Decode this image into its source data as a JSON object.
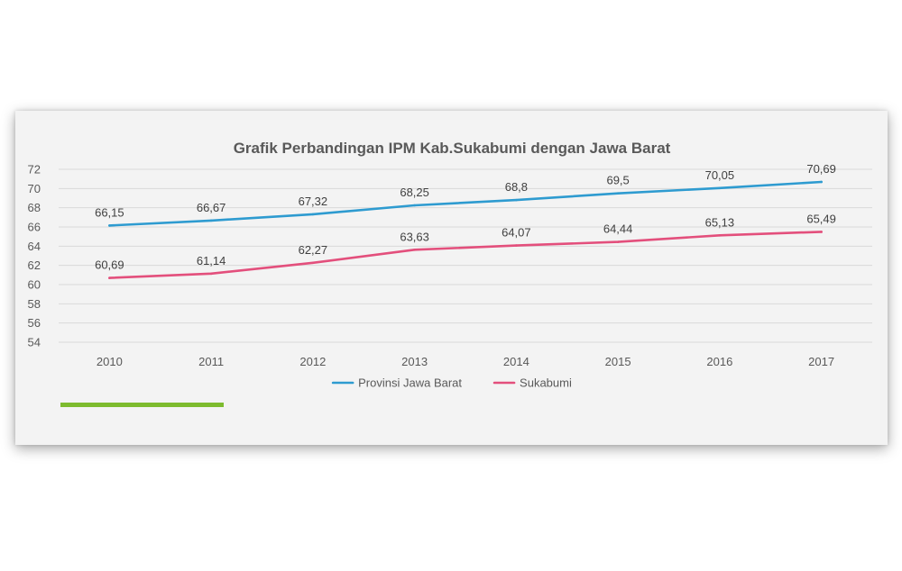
{
  "chart_data": {
    "type": "line",
    "title": "Grafik Perbandingan IPM Kab.Sukabumi dengan Jawa Barat",
    "categories": [
      "2010",
      "2011",
      "2012",
      "2013",
      "2014",
      "2015",
      "2016",
      "2017"
    ],
    "ylim": [
      54,
      72
    ],
    "yticks": [
      54,
      56,
      58,
      60,
      62,
      64,
      66,
      68,
      70,
      72
    ],
    "grid": true,
    "legend": "bottom",
    "series": [
      {
        "name": "Provinsi Jawa Barat",
        "color": "#2E9BD0",
        "values": [
          66.15,
          66.67,
          67.32,
          68.25,
          68.8,
          69.5,
          70.05,
          70.69
        ],
        "labels": [
          "66,15",
          "66,67",
          "67,32",
          "68,25",
          "68,8",
          "69,5",
          "70,05",
          "70,69"
        ]
      },
      {
        "name": "Sukabumi",
        "color": "#E34F7C",
        "values": [
          60.69,
          61.14,
          62.27,
          63.63,
          64.07,
          64.44,
          65.13,
          65.49
        ],
        "labels": [
          "60,69",
          "61,14",
          "62,27",
          "63,63",
          "64,07",
          "64,44",
          "65,13",
          "65,49"
        ]
      }
    ]
  },
  "accent_color": "#7DBB2E"
}
